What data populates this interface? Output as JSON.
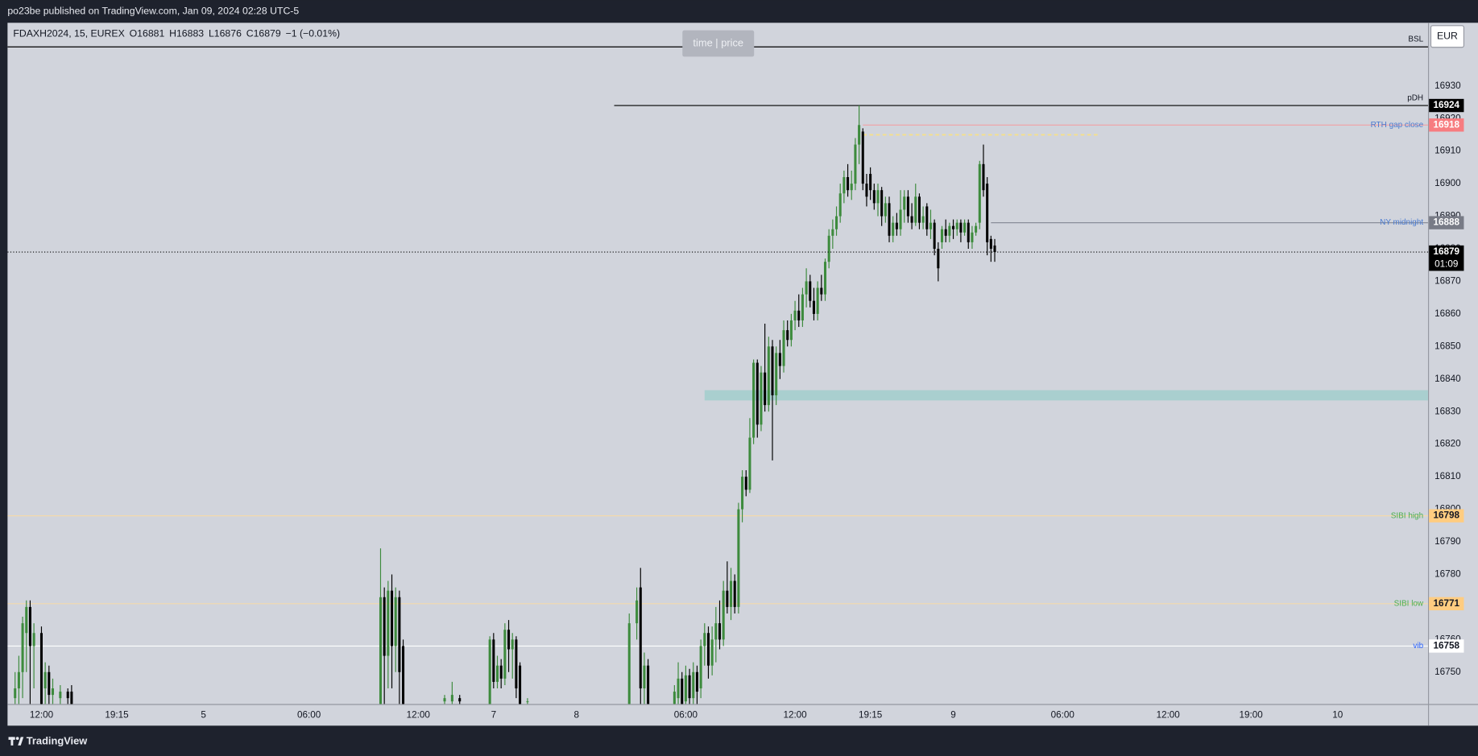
{
  "header": {
    "text": "po23be published on TradingView.com, Jan 09, 2024 02:28 UTC-5"
  },
  "footer": {
    "brand": "TradingView"
  },
  "toolbar": {
    "currency": "EUR",
    "watermark": "time | price"
  },
  "chart_data": {
    "type": "candlestick",
    "legend": {
      "symbol": "FDAXH2024, 15, EUREX",
      "items": [
        {
          "label": "O",
          "value": 16881
        },
        {
          "label": "H",
          "value": 16883
        },
        {
          "label": "L",
          "value": 16876
        },
        {
          "label": "C",
          "value": 16879
        }
      ],
      "change": "−1 (−0.01%)"
    },
    "up_color": "#3d8b3d",
    "down_color": "#000000",
    "xlim": [
      0,
      377
    ],
    "xticks": [
      {
        "value": 9,
        "label": "12:00"
      },
      {
        "value": 29,
        "label": "19:15"
      },
      {
        "value": 52,
        "label": "5"
      },
      {
        "value": 80,
        "label": "06:00"
      },
      {
        "value": 109,
        "label": "12:00"
      },
      {
        "value": 129,
        "label": "7"
      },
      {
        "value": 151,
        "label": "8"
      },
      {
        "value": 180,
        "label": "06:00"
      },
      {
        "value": 209,
        "label": "12:00"
      },
      {
        "value": 229,
        "label": "19:15"
      },
      {
        "value": 251,
        "label": "9"
      },
      {
        "value": 280,
        "label": "06:00"
      },
      {
        "value": 308,
        "label": "12:00"
      },
      {
        "value": 330,
        "label": "19:00"
      },
      {
        "value": 353,
        "label": "10"
      }
    ],
    "ylim": [
      16740.2,
      16949.4
    ],
    "yticks": [
      16750,
      16760,
      16770,
      16780,
      16790,
      16800,
      16810,
      16820,
      16830,
      16840,
      16850,
      16860,
      16870,
      16880,
      16890,
      16900,
      16910,
      16920,
      16930
    ],
    "candles": [
      {
        "x": 2,
        "open": 16742,
        "high": 16750,
        "low": 16738,
        "close": 16745
      },
      {
        "x": 3,
        "open": 16745,
        "high": 16755,
        "low": 16740,
        "close": 16750
      },
      {
        "x": 4,
        "open": 16750,
        "high": 16767,
        "low": 16742,
        "close": 16765
      },
      {
        "x": 5,
        "open": 16762,
        "high": 16772,
        "low": 16750,
        "close": 16770
      },
      {
        "x": 6,
        "open": 16770,
        "high": 16772,
        "low": 16740,
        "close": 16758
      },
      {
        "x": 7,
        "open": 16758,
        "high": 16765,
        "low": 16745,
        "close": 16762
      },
      {
        "x": 9,
        "open": 16762,
        "high": 16764,
        "low": 16736,
        "close": 16740
      },
      {
        "x": 10,
        "open": 16745,
        "high": 16753,
        "low": 16736,
        "close": 16750
      },
      {
        "x": 11,
        "open": 16750,
        "high": 16752,
        "low": 16736,
        "close": 16743
      },
      {
        "x": 12,
        "open": 16743,
        "high": 16748,
        "low": 16736,
        "close": 16745
      },
      {
        "x": 14,
        "open": 16742,
        "high": 16746,
        "low": 16736,
        "close": 16744
      },
      {
        "x": 16,
        "open": 16744,
        "high": 16745,
        "low": 16736,
        "close": 16742
      },
      {
        "x": 17,
        "open": 16744,
        "high": 16746,
        "low": 16736,
        "close": 16740
      },
      {
        "x": 99,
        "open": 16740,
        "high": 16788,
        "low": 16736,
        "close": 16773
      },
      {
        "x": 100,
        "open": 16773,
        "high": 16776,
        "low": 16736,
        "close": 16755
      },
      {
        "x": 101,
        "open": 16755,
        "high": 16778,
        "low": 16745,
        "close": 16775
      },
      {
        "x": 102,
        "open": 16775,
        "high": 16780,
        "low": 16745,
        "close": 16758
      },
      {
        "x": 103,
        "open": 16758,
        "high": 16776,
        "low": 16750,
        "close": 16773
      },
      {
        "x": 104,
        "open": 16773,
        "high": 16775,
        "low": 16736,
        "close": 16750
      },
      {
        "x": 105,
        "open": 16758,
        "high": 16760,
        "low": 16736,
        "close": 16740
      },
      {
        "x": 116,
        "open": 16741,
        "high": 16743,
        "low": 16740,
        "close": 16742
      },
      {
        "x": 118,
        "open": 16741,
        "high": 16747,
        "low": 16739,
        "close": 16743
      },
      {
        "x": 120,
        "open": 16742,
        "high": 16743,
        "low": 16739,
        "close": 16741
      },
      {
        "x": 128,
        "open": 16740,
        "high": 16761,
        "low": 16736,
        "close": 16760
      },
      {
        "x": 129,
        "open": 16760,
        "high": 16762,
        "low": 16745,
        "close": 16747
      },
      {
        "x": 130,
        "open": 16747,
        "high": 16755,
        "low": 16745,
        "close": 16752
      },
      {
        "x": 131,
        "open": 16752,
        "high": 16754,
        "low": 16745,
        "close": 16748
      },
      {
        "x": 132,
        "open": 16748,
        "high": 16765,
        "low": 16746,
        "close": 16763
      },
      {
        "x": 133,
        "open": 16763,
        "high": 16766,
        "low": 16750,
        "close": 16757
      },
      {
        "x": 134,
        "open": 16757,
        "high": 16762,
        "low": 16748,
        "close": 16760
      },
      {
        "x": 135,
        "open": 16760,
        "high": 16761,
        "low": 16742,
        "close": 16745
      },
      {
        "x": 136,
        "open": 16752,
        "high": 16753,
        "low": 16736,
        "close": 16740
      },
      {
        "x": 138,
        "open": 16741,
        "high": 16742,
        "low": 16740,
        "close": 16741
      },
      {
        "x": 165,
        "open": 16740,
        "high": 16768,
        "low": 16738,
        "close": 16765
      },
      {
        "x": 167,
        "open": 16765,
        "high": 16776,
        "low": 16760,
        "close": 16772
      },
      {
        "x": 168,
        "open": 16776,
        "high": 16782,
        "low": 16740,
        "close": 16745
      },
      {
        "x": 169,
        "open": 16745,
        "high": 16756,
        "low": 16736,
        "close": 16752
      },
      {
        "x": 170,
        "open": 16752,
        "high": 16754,
        "low": 16736,
        "close": 16740
      },
      {
        "x": 177,
        "open": 16740,
        "high": 16746,
        "low": 16736,
        "close": 16744
      },
      {
        "x": 178,
        "open": 16742,
        "high": 16753,
        "low": 16736,
        "close": 16748
      },
      {
        "x": 179,
        "open": 16748,
        "high": 16750,
        "low": 16736,
        "close": 16740
      },
      {
        "x": 180,
        "open": 16741,
        "high": 16752,
        "low": 16738,
        "close": 16749
      },
      {
        "x": 181,
        "open": 16749,
        "high": 16751,
        "low": 16738,
        "close": 16742
      },
      {
        "x": 182,
        "open": 16742,
        "high": 16753,
        "low": 16738,
        "close": 16750
      },
      {
        "x": 183,
        "open": 16750,
        "high": 16752,
        "low": 16740,
        "close": 16744
      },
      {
        "x": 184,
        "open": 16745,
        "high": 16760,
        "low": 16742,
        "close": 16758
      },
      {
        "x": 185,
        "open": 16758,
        "high": 16765,
        "low": 16752,
        "close": 16762
      },
      {
        "x": 186,
        "open": 16762,
        "high": 16764,
        "low": 16748,
        "close": 16752
      },
      {
        "x": 187,
        "open": 16752,
        "high": 16764,
        "low": 16749,
        "close": 16760
      },
      {
        "x": 188,
        "open": 16760,
        "high": 16770,
        "low": 16753,
        "close": 16765
      },
      {
        "x": 189,
        "open": 16765,
        "high": 16772,
        "low": 16757,
        "close": 16760
      },
      {
        "x": 190,
        "open": 16760,
        "high": 16778,
        "low": 16758,
        "close": 16775
      },
      {
        "x": 191,
        "open": 16775,
        "high": 16784,
        "low": 16768,
        "close": 16770
      },
      {
        "x": 192,
        "open": 16770,
        "high": 16782,
        "low": 16766,
        "close": 16778
      },
      {
        "x": 193,
        "open": 16778,
        "high": 16780,
        "low": 16768,
        "close": 16770
      },
      {
        "x": 194,
        "open": 16770,
        "high": 16802,
        "low": 16768,
        "close": 16800
      },
      {
        "x": 195,
        "open": 16800,
        "high": 16812,
        "low": 16796,
        "close": 16810
      },
      {
        "x": 196,
        "open": 16810,
        "high": 16812,
        "low": 16804,
        "close": 16806
      },
      {
        "x": 197,
        "open": 16806,
        "high": 16828,
        "low": 16805,
        "close": 16822
      },
      {
        "x": 198,
        "open": 16822,
        "high": 16846,
        "low": 16820,
        "close": 16845
      },
      {
        "x": 199,
        "open": 16845,
        "high": 16846,
        "low": 16822,
        "close": 16826
      },
      {
        "x": 200,
        "open": 16826,
        "high": 16844,
        "low": 16824,
        "close": 16842
      },
      {
        "x": 201,
        "open": 16842,
        "high": 16857,
        "low": 16830,
        "close": 16832
      },
      {
        "x": 202,
        "open": 16832,
        "high": 16853,
        "low": 16830,
        "close": 16850
      },
      {
        "x": 203,
        "open": 16850,
        "high": 16852,
        "low": 16815,
        "close": 16835
      },
      {
        "x": 204,
        "open": 16835,
        "high": 16850,
        "low": 16832,
        "close": 16848
      },
      {
        "x": 205,
        "open": 16848,
        "high": 16852,
        "low": 16840,
        "close": 16844
      },
      {
        "x": 206,
        "open": 16844,
        "high": 16858,
        "low": 16842,
        "close": 16855
      },
      {
        "x": 207,
        "open": 16855,
        "high": 16858,
        "low": 16850,
        "close": 16852
      },
      {
        "x": 208,
        "open": 16852,
        "high": 16860,
        "low": 16850,
        "close": 16858
      },
      {
        "x": 209,
        "open": 16858,
        "high": 16864,
        "low": 16855,
        "close": 16861
      },
      {
        "x": 210,
        "open": 16861,
        "high": 16866,
        "low": 16856,
        "close": 16858
      },
      {
        "x": 211,
        "open": 16858,
        "high": 16868,
        "low": 16856,
        "close": 16866
      },
      {
        "x": 212,
        "open": 16866,
        "high": 16874,
        "low": 16862,
        "close": 16870
      },
      {
        "x": 213,
        "open": 16870,
        "high": 16872,
        "low": 16862,
        "close": 16864
      },
      {
        "x": 214,
        "open": 16864,
        "high": 16868,
        "low": 16858,
        "close": 16860
      },
      {
        "x": 215,
        "open": 16860,
        "high": 16870,
        "low": 16858,
        "close": 16868
      },
      {
        "x": 216,
        "open": 16868,
        "high": 16872,
        "low": 16864,
        "close": 16866
      },
      {
        "x": 217,
        "open": 16866,
        "high": 16877,
        "low": 16864,
        "close": 16876
      },
      {
        "x": 218,
        "open": 16876,
        "high": 16886,
        "low": 16874,
        "close": 16884
      },
      {
        "x": 219,
        "open": 16884,
        "high": 16889,
        "low": 16880,
        "close": 16886
      },
      {
        "x": 220,
        "open": 16886,
        "high": 16893,
        "low": 16884,
        "close": 16890
      },
      {
        "x": 221,
        "open": 16890,
        "high": 16900,
        "low": 16888,
        "close": 16897
      },
      {
        "x": 222,
        "open": 16897,
        "high": 16904,
        "low": 16894,
        "close": 16902
      },
      {
        "x": 223,
        "open": 16902,
        "high": 16906,
        "low": 16896,
        "close": 16898
      },
      {
        "x": 224,
        "open": 16898,
        "high": 16904,
        "low": 16895,
        "close": 16900
      },
      {
        "x": 225,
        "open": 16900,
        "high": 16914,
        "low": 16898,
        "close": 16912
      },
      {
        "x": 226,
        "open": 16912,
        "high": 16924,
        "low": 16906,
        "close": 16918
      },
      {
        "x": 227,
        "open": 16916,
        "high": 16917,
        "low": 16898,
        "close": 16900
      },
      {
        "x": 228,
        "open": 16900,
        "high": 16903,
        "low": 16893,
        "close": 16896
      },
      {
        "x": 229,
        "open": 16903,
        "high": 16905,
        "low": 16895,
        "close": 16898
      },
      {
        "x": 230,
        "open": 16898,
        "high": 16900,
        "low": 16892,
        "close": 16894
      },
      {
        "x": 231,
        "open": 16894,
        "high": 16900,
        "low": 16890,
        "close": 16898
      },
      {
        "x": 232,
        "open": 16898,
        "high": 16899,
        "low": 16887,
        "close": 16890
      },
      {
        "x": 233,
        "open": 16890,
        "high": 16896,
        "low": 16888,
        "close": 16894
      },
      {
        "x": 234,
        "open": 16894,
        "high": 16896,
        "low": 16882,
        "close": 16884
      },
      {
        "x": 235,
        "open": 16884,
        "high": 16890,
        "low": 16882,
        "close": 16888
      },
      {
        "x": 236,
        "open": 16888,
        "high": 16891,
        "low": 16884,
        "close": 16886
      },
      {
        "x": 237,
        "open": 16886,
        "high": 16898,
        "low": 16884,
        "close": 16892
      },
      {
        "x": 238,
        "open": 16892,
        "high": 16898,
        "low": 16888,
        "close": 16896
      },
      {
        "x": 239,
        "open": 16896,
        "high": 16898,
        "low": 16888,
        "close": 16890
      },
      {
        "x": 240,
        "open": 16890,
        "high": 16894,
        "low": 16886,
        "close": 16888
      },
      {
        "x": 241,
        "open": 16888,
        "high": 16900,
        "low": 16887,
        "close": 16896
      },
      {
        "x": 242,
        "open": 16896,
        "high": 16897,
        "low": 16886,
        "close": 16888
      },
      {
        "x": 243,
        "open": 16888,
        "high": 16893,
        "low": 16886,
        "close": 16890
      },
      {
        "x": 244,
        "open": 16893,
        "high": 16894,
        "low": 16884,
        "close": 16886
      },
      {
        "x": 245,
        "open": 16886,
        "high": 16892,
        "low": 16883,
        "close": 16888
      },
      {
        "x": 246,
        "open": 16888,
        "high": 16889,
        "low": 16878,
        "close": 16880
      },
      {
        "x": 247,
        "open": 16880,
        "high": 16882,
        "low": 16870,
        "close": 16874
      },
      {
        "x": 248,
        "open": 16882,
        "high": 16887,
        "low": 16880,
        "close": 16886
      },
      {
        "x": 249,
        "open": 16886,
        "high": 16889,
        "low": 16882,
        "close": 16884
      },
      {
        "x": 250,
        "open": 16884,
        "high": 16888,
        "low": 16882,
        "close": 16887
      },
      {
        "x": 251,
        "open": 16887,
        "high": 16889,
        "low": 16883,
        "close": 16886
      },
      {
        "x": 252,
        "open": 16886,
        "high": 16889,
        "low": 16884,
        "close": 16888
      },
      {
        "x": 253,
        "open": 16888,
        "high": 16889,
        "low": 16882,
        "close": 16885
      },
      {
        "x": 254,
        "open": 16885,
        "high": 16889,
        "low": 16884,
        "close": 16888
      },
      {
        "x": 255,
        "open": 16888,
        "high": 16889,
        "low": 16880,
        "close": 16882
      },
      {
        "x": 256,
        "open": 16882,
        "high": 16887,
        "low": 16880,
        "close": 16885
      },
      {
        "x": 257,
        "open": 16885,
        "high": 16888,
        "low": 16884,
        "close": 16887
      },
      {
        "x": 258,
        "open": 16888,
        "high": 16907,
        "low": 16886,
        "close": 16906
      },
      {
        "x": 259,
        "open": 16906,
        "high": 16912,
        "low": 16896,
        "close": 16898
      },
      {
        "x": 260,
        "open": 16900,
        "high": 16902,
        "low": 16878,
        "close": 16882
      },
      {
        "x": 261,
        "open": 16883,
        "high": 16884,
        "low": 16876,
        "close": 16880
      },
      {
        "x": 262,
        "open": 16881,
        "high": 16883,
        "low": 16876,
        "close": 16879
      }
    ],
    "zone": {
      "low": 16834,
      "high": 16836,
      "color": "#a9cfcf",
      "x_start": 185
    },
    "levels": [
      {
        "name": "BSL",
        "value": 16942,
        "color": "#000000",
        "label_color": "#131722",
        "label_position": "above"
      },
      {
        "name": "pDH",
        "value": 16924,
        "color": "#000000",
        "x_start": 161,
        "label_color": "#131722",
        "label_position": "above",
        "tag_color": "#000000",
        "tag_text_color": "#ffffff"
      },
      {
        "name": "RTH gap close",
        "value": 16918,
        "color": "#f2a0a4",
        "x_start": 227,
        "label_color": "#4a7bd0",
        "tag_color": "#f77c80",
        "tag_text_color": "#ffffff"
      },
      {
        "value": 16915,
        "color": "#f5e08a",
        "x_start": 227,
        "x_end": 290,
        "style": "dashed"
      },
      {
        "name": "NY midnight",
        "value": 16888,
        "color": "#8a8e99",
        "x_start": 261,
        "label_color": "#4a7bd0",
        "tag_color": "#787b86",
        "tag_text_color": "#ffffff"
      },
      {
        "name": "SIBI high",
        "value": 16798,
        "color": "#f3d9ad",
        "label_color": "#4caf50",
        "tag_color": "#ffcc80",
        "tag_text_color": "#131722"
      },
      {
        "name": "SIBI low",
        "value": 16771,
        "color": "#f3d9ad",
        "label_color": "#4caf50",
        "tag_color": "#ffcc80",
        "tag_text_color": "#131722"
      },
      {
        "name": "vib",
        "value": 16758,
        "color": "#ffffff",
        "label_color": "#2962ff",
        "tag_color": "#ffffff",
        "tag_text_color": "#131722"
      }
    ],
    "last": {
      "value": 16879,
      "countdown": "01:09",
      "color": "#000000"
    }
  }
}
